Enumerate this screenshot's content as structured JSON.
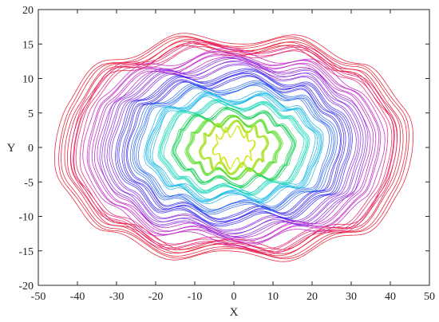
{
  "chart_data": {
    "type": "line",
    "title": "",
    "xlabel": "X",
    "ylabel": "Y",
    "xlim": [
      -50,
      50
    ],
    "ylim": [
      -20,
      20
    ],
    "xticks": [
      -50,
      -40,
      -30,
      -20,
      -10,
      0,
      10,
      20,
      30,
      40,
      50
    ],
    "yticks": [
      -20,
      -15,
      -10,
      -5,
      0,
      5,
      10,
      15,
      20
    ],
    "grid": false,
    "legend": "none",
    "series": [
      {
        "a": 45.5,
        "b": 16.0,
        "color": "#e8142c",
        "strands": 7,
        "ripple_amp": 1.0,
        "ripple_freq": 11
      },
      {
        "a": 41.5,
        "b": 14.8,
        "color": "#e62070",
        "strands": 4,
        "ripple_amp": 0.9,
        "ripple_freq": 11
      },
      {
        "a": 38.0,
        "b": 13.4,
        "color": "#c020c8",
        "strands": 6,
        "ripple_amp": 0.9,
        "ripple_freq": 11
      },
      {
        "a": 34.0,
        "b": 12.2,
        "color": "#8a2be0",
        "strands": 6,
        "ripple_amp": 0.9,
        "ripple_freq": 11
      },
      {
        "a": 30.0,
        "b": 10.6,
        "color": "#3b2cf0",
        "strands": 7,
        "ripple_amp": 0.9,
        "ripple_freq": 11
      },
      {
        "a": 26.0,
        "b": 9.0,
        "color": "#2f6af0",
        "strands": 5,
        "ripple_amp": 0.8,
        "ripple_freq": 11
      },
      {
        "a": 22.5,
        "b": 7.6,
        "color": "#18b8e8",
        "strands": 6,
        "ripple_amp": 0.8,
        "ripple_freq": 11
      },
      {
        "a": 19.0,
        "b": 6.4,
        "color": "#1ed8b8",
        "strands": 5,
        "ripple_amp": 0.7,
        "ripple_freq": 11
      },
      {
        "a": 15.5,
        "b": 5.2,
        "color": "#20d060",
        "strands": 5,
        "ripple_amp": 0.7,
        "ripple_freq": 11
      },
      {
        "a": 12.0,
        "b": 4.0,
        "color": "#58dc28",
        "strands": 5,
        "ripple_amp": 0.7,
        "ripple_freq": 11
      },
      {
        "a": 8.5,
        "b": 3.2,
        "color": "#a6e020",
        "strands": 5,
        "ripple_amp": 0.8,
        "ripple_freq": 11
      },
      {
        "a": 5.0,
        "b": 2.4,
        "color": "#d2e61e",
        "strands": 4,
        "ripple_amp": 0.8,
        "ripple_freq": 11
      }
    ]
  }
}
